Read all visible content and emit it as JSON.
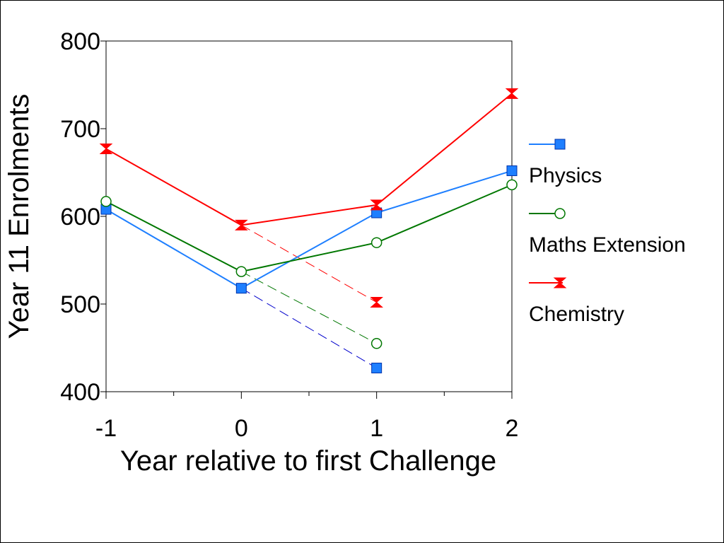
{
  "chart_data": {
    "type": "line",
    "xlabel": "Year relative to first Challenge",
    "ylabel": "Year 11 Enrolments",
    "xlim": [
      -1,
      2
    ],
    "ylim": [
      400,
      800
    ],
    "xticks": [
      -1,
      0,
      1,
      2
    ],
    "yticks": [
      400,
      500,
      600,
      700,
      800
    ],
    "x_minor_ticks": [
      -0.5,
      0.5,
      1.5
    ],
    "grid": false,
    "legend_position": "right",
    "series": [
      {
        "name": "Physics",
        "color": "#1E7FFF",
        "marker": "square",
        "points": [
          [
            -1,
            608
          ],
          [
            0,
            518
          ],
          [
            1,
            604
          ],
          [
            2,
            652
          ]
        ],
        "projection": [
          [
            0,
            518
          ],
          [
            1,
            427
          ]
        ],
        "projection_color": "#0000CC"
      },
      {
        "name": "Maths Extension",
        "color": "#007700",
        "marker": "circle",
        "points": [
          [
            -1,
            617
          ],
          [
            0,
            537
          ],
          [
            1,
            570
          ],
          [
            2,
            636
          ]
        ],
        "projection": [
          [
            0,
            537
          ],
          [
            1,
            455
          ]
        ],
        "projection_color": "#007700"
      },
      {
        "name": "Chemistry",
        "color": "#FF0000",
        "marker": "hourglass",
        "points": [
          [
            -1,
            677
          ],
          [
            0,
            590
          ],
          [
            1,
            613
          ],
          [
            2,
            740
          ]
        ],
        "projection": [
          [
            0,
            590
          ],
          [
            1,
            502
          ]
        ],
        "projection_color": "#FF0000"
      }
    ]
  }
}
